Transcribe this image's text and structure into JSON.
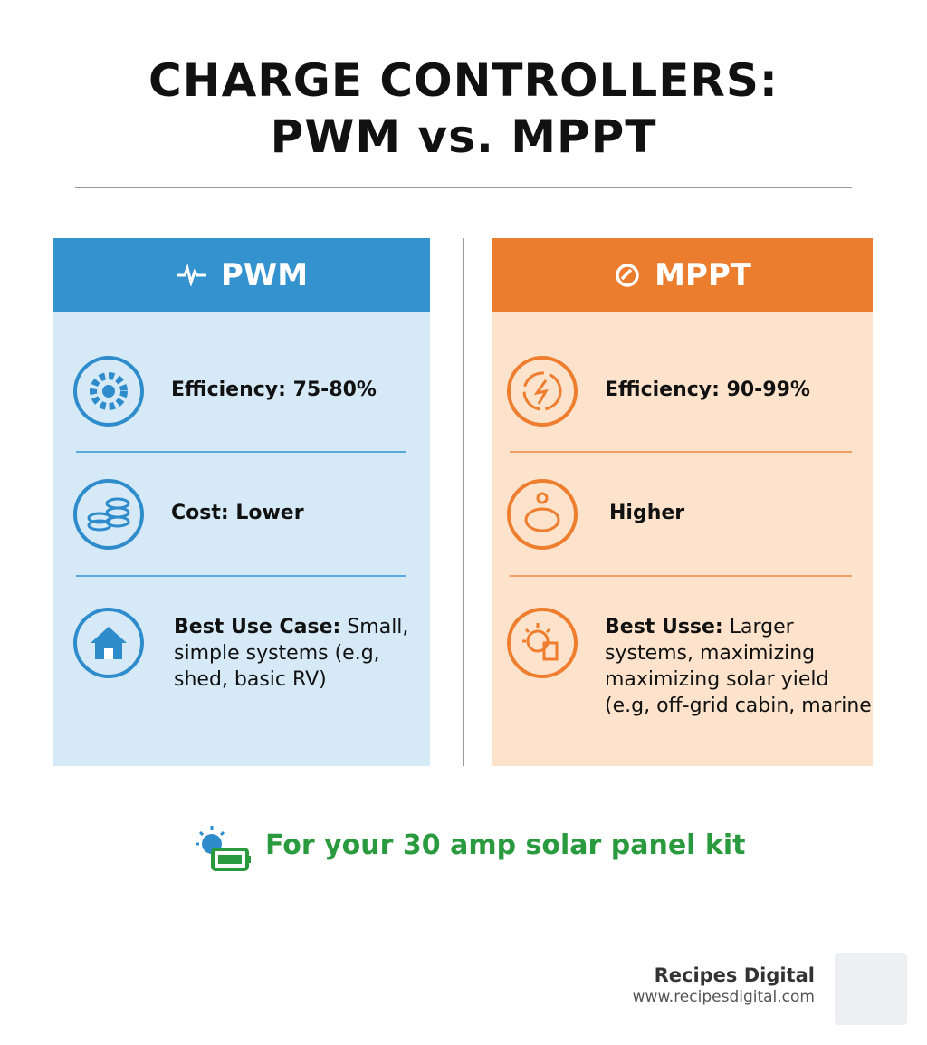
{
  "header": {
    "title_line1": "CHARGE CONTROLLERS:",
    "title_line2": "PWM vs. MPPT"
  },
  "columns": [
    {
      "heading": "PWM",
      "rows": [
        {
          "label": "Efficiency: 75-80%"
        },
        {
          "label": "Cost: Lower"
        },
        {
          "label": "Best Use Case:",
          "text": "Small, simple systems (e.g, shed, basic RV)"
        }
      ]
    },
    {
      "heading": "MPPT",
      "rows": [
        {
          "label": "Efficiency: 90-99%"
        },
        {
          "label": "Higher"
        },
        {
          "label": "Best Usse:",
          "text": "Larger systems, maximizing maximizing solar yield (e.g, off-grid cabin, marine"
        }
      ]
    }
  ],
  "banner": "For your 30 amp solar panel kit",
  "brand": {
    "name": "Recipes Digital",
    "url": "www.recipesdigital.com"
  }
}
